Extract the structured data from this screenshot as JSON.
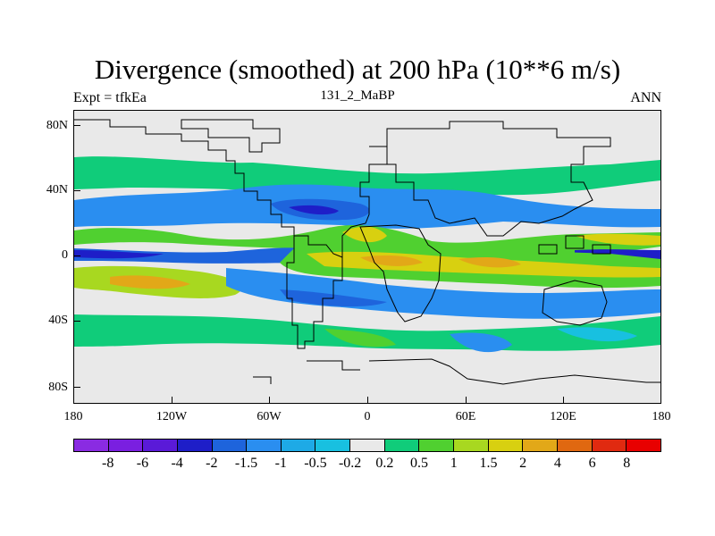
{
  "title": "Divergence (smoothed) at 200 hPa (10**6 m/s)",
  "experiment_label": "Expt = tfkEa",
  "run_label": "131_2_MaBP",
  "season_label": "ANN",
  "latitude_ticks": [
    "80N",
    "40N",
    "0",
    "40S",
    "80S"
  ],
  "longitude_ticks": [
    "180",
    "120W",
    "60W",
    "0",
    "60E",
    "120E",
    "180"
  ],
  "colorbar": {
    "colors": [
      "#8a2be2",
      "#7a1fe0",
      "#5a1ad8",
      "#1e1ec8",
      "#1e64dc",
      "#2a8ef0",
      "#1eaae6",
      "#18c0e0",
      "#e9e9e9",
      "#10cc7a",
      "#50d030",
      "#a8d820",
      "#d8d010",
      "#e2a818",
      "#e06810",
      "#e02a10",
      "#e80000"
    ],
    "labels": [
      "-8",
      "-6",
      "-4",
      "-2",
      "-1.5",
      "-1",
      "-0.5",
      "-0.2",
      "0.2",
      "0.5",
      "1",
      "1.5",
      "2",
      "4",
      "6",
      "8"
    ]
  }
}
